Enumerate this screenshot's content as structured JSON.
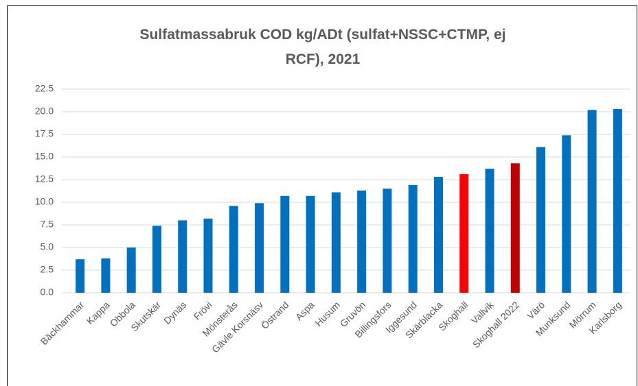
{
  "chart_data": {
    "type": "bar",
    "title": "Sulfatmassabruk COD kg/ADt (sulfat+NSSC+CTMP, ej RCF), 2021",
    "categories": [
      "Bäckhammar",
      "Kappa",
      "Obbola",
      "Skutskär",
      "Dynäs",
      "Frövi",
      "Mönsterås",
      "Gävle Korsnäsv",
      "Östrand",
      "Aspa",
      "Husum",
      "Gruvön",
      "Billingsfors",
      "Iggesund",
      "Skärblacka",
      "Skoghall",
      "Vallvik",
      "Skoghall 2022",
      "Värö",
      "Munksund",
      "Mörrum",
      "Karlsborg"
    ],
    "values": [
      3.7,
      3.8,
      5.0,
      7.4,
      8.0,
      8.2,
      9.6,
      9.9,
      10.7,
      10.7,
      11.1,
      11.3,
      11.5,
      11.9,
      12.8,
      13.1,
      13.7,
      14.3,
      16.1,
      17.4,
      20.2,
      20.3
    ],
    "colors": [
      "#0070c0",
      "#0070c0",
      "#0070c0",
      "#0070c0",
      "#0070c0",
      "#0070c0",
      "#0070c0",
      "#0070c0",
      "#0070c0",
      "#0070c0",
      "#0070c0",
      "#0070c0",
      "#0070c0",
      "#0070c0",
      "#0070c0",
      "#ff0000",
      "#0070c0",
      "#c00000",
      "#0070c0",
      "#0070c0",
      "#0070c0",
      "#0070c0"
    ],
    "ylim": [
      0,
      22.5
    ],
    "yticks": [
      {
        "value": 0,
        "label": "0.0"
      },
      2.5,
      {
        "value": 5,
        "label": "5.0"
      },
      7.5,
      {
        "value": 10,
        "label": "10.0"
      },
      12.5,
      {
        "value": 15,
        "label": "15.0"
      },
      17.5,
      {
        "value": 20,
        "label": "20.0"
      },
      22.5
    ],
    "grid": true
  }
}
